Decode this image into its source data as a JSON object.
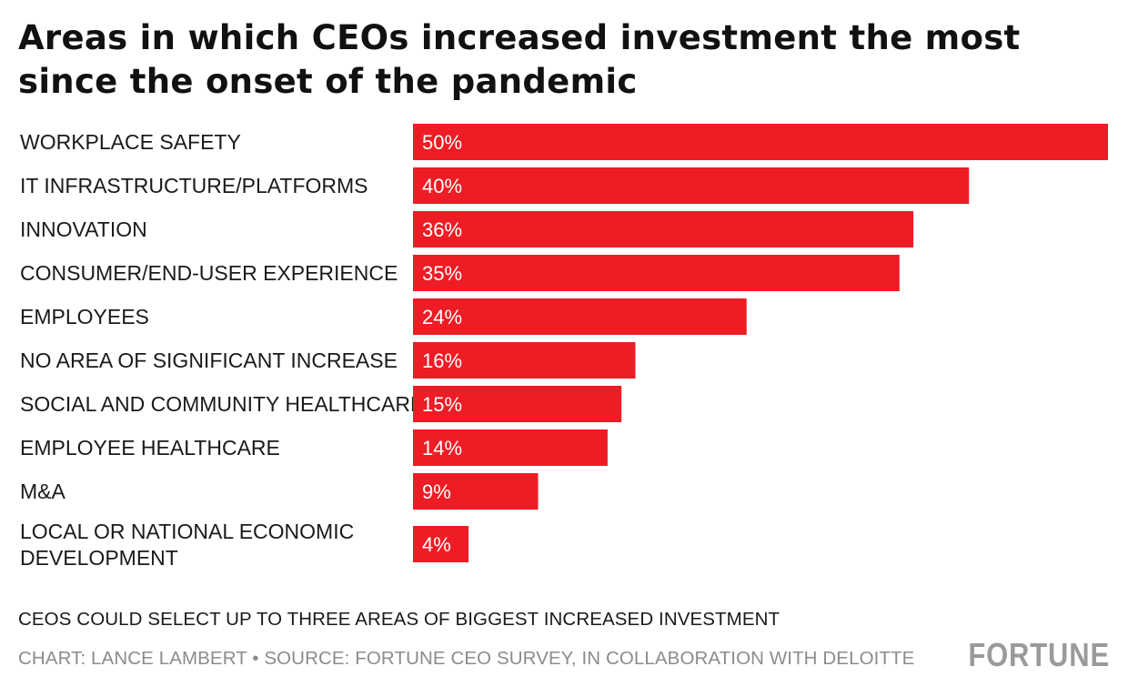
{
  "chart_data": {
    "type": "bar",
    "orientation": "horizontal",
    "title": "Areas in which CEOs increased investment the most since the onset of the pandemic",
    "categories": [
      "WORKPLACE SAFETY",
      "IT INFRASTRUCTURE/PLATFORMS",
      "INNOVATION",
      "CONSUMER/END-USER EXPERIENCE",
      "EMPLOYEES",
      "NO AREA OF SIGNIFICANT INCREASE",
      "SOCIAL AND COMMUNITY HEALTHCARE",
      "EMPLOYEE HEALTHCARE",
      "M&A",
      "LOCAL OR NATIONAL ECONOMIC DEVELOPMENT"
    ],
    "values": [
      50,
      40,
      36,
      35,
      24,
      16,
      15,
      14,
      9,
      4
    ],
    "value_labels": [
      "50%",
      "40%",
      "36%",
      "35%",
      "24%",
      "16%",
      "15%",
      "14%",
      "9%",
      "4%"
    ],
    "unit": "%",
    "xlim": [
      0,
      50
    ],
    "xlabel": "",
    "ylabel": "",
    "grid": false,
    "legend": "none",
    "bar_color": "#ee1c25",
    "note": "CEOS COULD SELECT UP TO THREE AREAS OF BIGGEST INCREASED INVESTMENT",
    "credit": "CHART: LANCE LAMBERT • SOURCE: FORTUNE CEO SURVEY, IN COLLABORATION WITH DELOITTE"
  },
  "brand": "FORTUNE"
}
